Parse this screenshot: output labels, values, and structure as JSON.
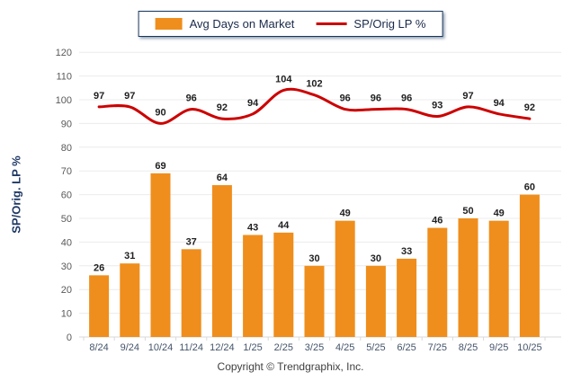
{
  "legend": {
    "bar_label": "Avg Days on Market",
    "line_label": "SP/Orig LP %"
  },
  "y_axis_title": "SP/Orig. LP %",
  "footer": {
    "copyright": "Copyright © Trendgraphix, Inc."
  },
  "colors": {
    "bar": "#ef8e1c",
    "line": "#cc0000",
    "grid": "#ececec",
    "axis": "#d9d9d9",
    "tick_label": "#595959",
    "x_tick_label": "#44546a",
    "data_label": "#1f1f1f",
    "legend_border": "#17365d",
    "axis_title": "#1f3864"
  },
  "chart_data": {
    "type": "bar+line combo",
    "categories": [
      "8/24",
      "9/24",
      "10/24",
      "11/24",
      "12/24",
      "1/25",
      "2/25",
      "3/25",
      "4/25",
      "5/25",
      "6/25",
      "7/25",
      "8/25",
      "9/25",
      "10/25"
    ],
    "series": [
      {
        "name": "Avg Days on Market",
        "type": "bar",
        "values": [
          26,
          31,
          69,
          37,
          64,
          43,
          44,
          30,
          49,
          30,
          33,
          46,
          50,
          49,
          60
        ]
      },
      {
        "name": "SP/Orig LP %",
        "type": "line",
        "values": [
          97,
          97,
          90,
          96,
          92,
          94,
          104,
          102,
          96,
          96,
          96,
          93,
          97,
          94,
          92
        ]
      }
    ],
    "title": "",
    "xlabel": "",
    "ylabel": "SP/Orig. LP %",
    "ylim": [
      0,
      120
    ],
    "ytick_step": 10,
    "grid": true,
    "data_labels": true,
    "legend_position": "top-center"
  }
}
